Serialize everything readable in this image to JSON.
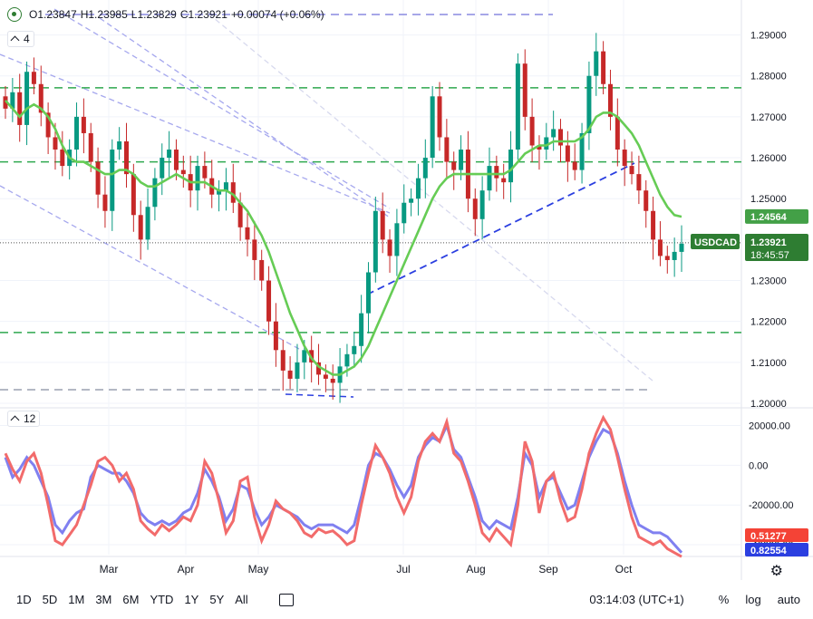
{
  "header": {
    "open": "O1.23847",
    "high": "H1.23985",
    "low": "L1.23829",
    "close": "C1.23921",
    "change": "+0.00074 (+0.06%)",
    "indicator_count_main": "4",
    "indicator_count_osc": "12"
  },
  "price_axis": {
    "ticks": [
      "1.29000",
      "1.28000",
      "1.27000",
      "1.26000",
      "1.25000",
      "1.24000",
      "1.23000",
      "1.22000",
      "1.21000",
      "1.20000"
    ],
    "ma_label": "1.24564",
    "symbol_label": "USDCAD",
    "last_price": "1.23921",
    "countdown": "18:45:57"
  },
  "osc_axis": {
    "ticks": [
      "20000.00",
      "0.00",
      "-20000.00",
      "-40000.00"
    ],
    "red_value": "0.51277",
    "blue_value": "0.82554"
  },
  "x_axis": {
    "months": [
      "Mar",
      "Apr",
      "May",
      "Jul",
      "Aug",
      "Sep",
      "Oct"
    ]
  },
  "toolbar": {
    "timeframes": [
      "1D",
      "5D",
      "1M",
      "3M",
      "6M",
      "YTD",
      "1Y",
      "5Y",
      "All"
    ],
    "clock": "03:14:03 (UTC+1)",
    "percent": "%",
    "log": "log",
    "auto": "auto"
  },
  "colors": {
    "up": "#089981",
    "down": "#c62828",
    "ma": "#66cc55",
    "level_line": "#2fa84f",
    "trend_blue": "#2b3fe0",
    "osc_red": "#f26b6b",
    "osc_blue": "#8080f0"
  },
  "chart_data": {
    "type": "candlestick",
    "symbol": "USDCAD",
    "ylim": [
      1.2,
      1.295
    ],
    "x_labels": [
      "Mar",
      "Apr",
      "May",
      "Jul",
      "Aug",
      "Sep",
      "Oct"
    ],
    "horizontal_levels": [
      1.2771,
      1.259,
      1.2173
    ],
    "gray_levels": [
      1.295,
      1.203
    ],
    "close_path": [
      1.272,
      1.276,
      1.268,
      1.281,
      1.278,
      1.271,
      1.265,
      1.262,
      1.258,
      1.262,
      1.27,
      1.266,
      1.259,
      1.251,
      1.247,
      1.262,
      1.264,
      1.256,
      1.246,
      1.24,
      1.248,
      1.255,
      1.26,
      1.262,
      1.257,
      1.256,
      1.252,
      1.258,
      1.255,
      1.251,
      1.252,
      1.254,
      1.249,
      1.243,
      1.24,
      1.235,
      1.23,
      1.22,
      1.213,
      1.208,
      1.206,
      1.21,
      1.213,
      1.21,
      1.207,
      1.206,
      1.205,
      1.209,
      1.212,
      1.214,
      1.222,
      1.232,
      1.247,
      1.24,
      1.236,
      1.244,
      1.249,
      1.25,
      1.255,
      1.26,
      1.275,
      1.265,
      1.259,
      1.257,
      1.262,
      1.25,
      1.245,
      1.252,
      1.258,
      1.255,
      1.254,
      1.262,
      1.283,
      1.27,
      1.263,
      1.262,
      1.265,
      1.267,
      1.263,
      1.259,
      1.257,
      1.266,
      1.28,
      1.286,
      1.278,
      1.27,
      1.262,
      1.258,
      1.256,
      1.252,
      1.247,
      1.24,
      1.236,
      1.235,
      1.237,
      1.239
    ],
    "ma_path": [
      1.274,
      1.272,
      1.27,
      1.272,
      1.273,
      1.272,
      1.27,
      1.267,
      1.263,
      1.26,
      1.259,
      1.259,
      1.258,
      1.257,
      1.256,
      1.256,
      1.257,
      1.257,
      1.256,
      1.254,
      1.253,
      1.253,
      1.254,
      1.255,
      1.256,
      1.255,
      1.254,
      1.254,
      1.254,
      1.253,
      1.252,
      1.252,
      1.251,
      1.249,
      1.247,
      1.244,
      1.241,
      1.237,
      1.232,
      1.227,
      1.222,
      1.218,
      1.214,
      1.211,
      1.209,
      1.208,
      1.207,
      1.207,
      1.208,
      1.209,
      1.211,
      1.214,
      1.218,
      1.222,
      1.226,
      1.23,
      1.234,
      1.238,
      1.242,
      1.246,
      1.25,
      1.253,
      1.255,
      1.256,
      1.256,
      1.256,
      1.256,
      1.256,
      1.256,
      1.256,
      1.256,
      1.257,
      1.259,
      1.261,
      1.262,
      1.263,
      1.263,
      1.264,
      1.264,
      1.264,
      1.264,
      1.265,
      1.267,
      1.27,
      1.271,
      1.271,
      1.27,
      1.268,
      1.266,
      1.263,
      1.259,
      1.255,
      1.251,
      1.248,
      1.246,
      1.2456
    ],
    "osc_ylim": [
      -45000,
      28000
    ],
    "osc_red": [
      6000,
      -2000,
      -8000,
      2000,
      6000,
      -4000,
      -20000,
      -38000,
      -40000,
      -35000,
      -30000,
      -20000,
      -10000,
      2000,
      4000,
      0,
      -8000,
      -4000,
      -12000,
      -28000,
      -32000,
      -35000,
      -30000,
      -33000,
      -30000,
      -26000,
      -28000,
      -20000,
      2000,
      -4000,
      -18000,
      -34000,
      -28000,
      -8000,
      -6000,
      -26000,
      -38000,
      -30000,
      -18000,
      -22000,
      -24000,
      -28000,
      -34000,
      -36000,
      -32000,
      -34000,
      -33000,
      -36000,
      -40000,
      -38000,
      -20000,
      -4000,
      10000,
      4000,
      -4000,
      -16000,
      -24000,
      -16000,
      2000,
      12000,
      16000,
      12000,
      22000,
      6000,
      2000,
      -8000,
      -20000,
      -34000,
      -38000,
      -32000,
      -36000,
      -40000,
      -20000,
      12000,
      2000,
      -24000,
      -8000,
      -4000,
      -18000,
      -28000,
      -26000,
      -12000,
      6000,
      16000,
      24000,
      18000,
      4000,
      -12000,
      -26000,
      -36000,
      -38000,
      -40000,
      -38000,
      -42000,
      -44000,
      -46000
    ],
    "osc_blue": [
      4000,
      -6000,
      -2000,
      4000,
      0,
      -8000,
      -16000,
      -30000,
      -34000,
      -28000,
      -24000,
      -22000,
      -6000,
      0,
      -2000,
      -4000,
      -4000,
      -8000,
      -14000,
      -24000,
      -28000,
      -30000,
      -28000,
      -30000,
      -28000,
      -24000,
      -22000,
      -14000,
      -2000,
      -8000,
      -16000,
      -28000,
      -22000,
      -10000,
      -12000,
      -22000,
      -30000,
      -26000,
      -20000,
      -22000,
      -24000,
      -26000,
      -30000,
      -32000,
      -30000,
      -30000,
      -30000,
      -32000,
      -34000,
      -30000,
      -16000,
      0,
      6000,
      4000,
      -2000,
      -10000,
      -16000,
      -10000,
      4000,
      10000,
      14000,
      12000,
      20000,
      8000,
      4000,
      -6000,
      -16000,
      -28000,
      -32000,
      -28000,
      -30000,
      -32000,
      -16000,
      6000,
      0,
      -16000,
      -8000,
      -6000,
      -14000,
      -22000,
      -20000,
      -8000,
      4000,
      12000,
      18000,
      16000,
      6000,
      -8000,
      -20000,
      -30000,
      -32000,
      -34000,
      -34000,
      -36000,
      -40000,
      -44000
    ]
  }
}
